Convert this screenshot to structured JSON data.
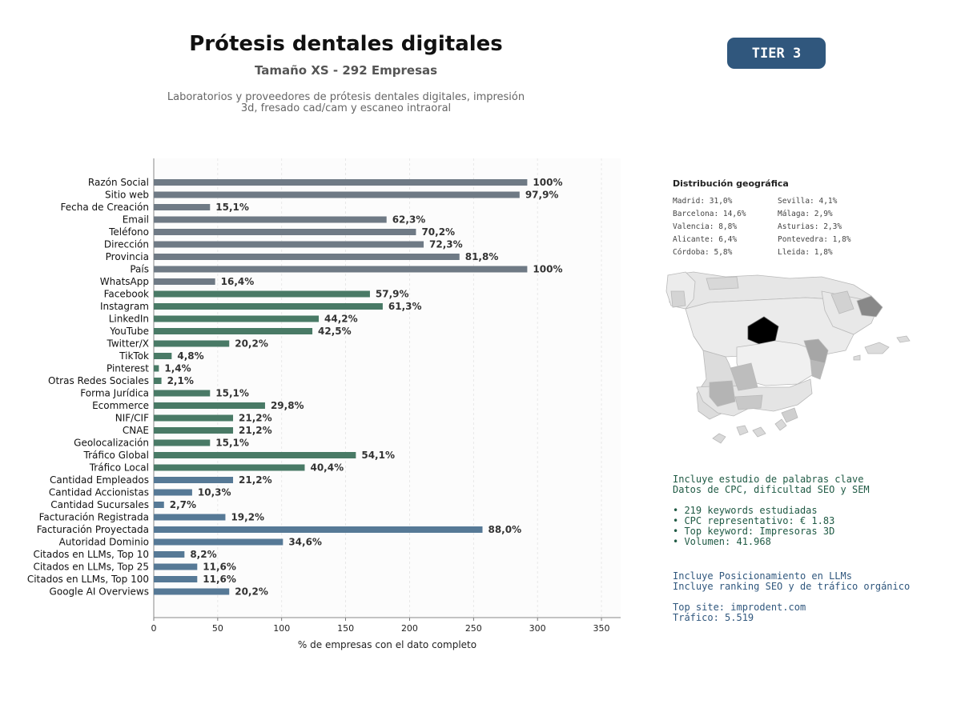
{
  "header": {
    "title": "Prótesis dentales digitales",
    "subtitle": "Tamaño XS - 292 Empresas",
    "description_line1": "Laboratorios y proveedores de prótesis dentales digitales, impresión",
    "description_line2": "3d, fresado cad/cam y escaneo intraoral",
    "tier": "TIER 3"
  },
  "chart_data": {
    "type": "bar",
    "orientation": "horizontal",
    "xlabel": "% de empresas con el dato completo",
    "xlim": [
      0,
      365
    ],
    "xticks": [
      0,
      50,
      100,
      150,
      200,
      250,
      300,
      350
    ],
    "colors": {
      "gray": "#6f7a85",
      "green": "#497a66",
      "blue": "#567996"
    },
    "categories": [
      "Razón Social",
      "Sitio web",
      "Fecha de Creación",
      "Email",
      "Teléfono",
      "Dirección",
      "Provincia",
      "País",
      "WhatsApp",
      "Facebook",
      "Instagram",
      "LinkedIn",
      "YouTube",
      "Twitter/X",
      "TikTok",
      "Pinterest",
      "Otras Redes Sociales",
      "Forma Jurídica",
      "Ecommerce",
      "NIF/CIF",
      "CNAE",
      "Geolocalización",
      "Tráfico Global",
      "Tráfico Local",
      "Cantidad Empleados",
      "Cantidad Accionistas",
      "Cantidad Sucursales",
      "Facturación Registrada",
      "Facturación Proyectada",
      "Autoridad Dominio",
      "Citados en LLMs, Top 10",
      "Citados en LLMs, Top 25",
      "Citados en LLMs, Top 100",
      "Google AI Overviews"
    ],
    "values": [
      292,
      286,
      44,
      182,
      205,
      211,
      239,
      292,
      48,
      169,
      179,
      129,
      124,
      59,
      14,
      4,
      6,
      44,
      87,
      62,
      62,
      44,
      158,
      118,
      62,
      30,
      8,
      56,
      257,
      101,
      24,
      34,
      34,
      59
    ],
    "labels": [
      "100%",
      "97,9%",
      "15,1%",
      "62,3%",
      "70,2%",
      "72,3%",
      "81,8%",
      "100%",
      "16,4%",
      "57,9%",
      "61,3%",
      "44,2%",
      "42,5%",
      "20,2%",
      "4,8%",
      "1,4%",
      "2,1%",
      "15,1%",
      "29,8%",
      "21,2%",
      "21,2%",
      "15,1%",
      "54,1%",
      "40,4%",
      "21,2%",
      "10,3%",
      "2,7%",
      "19,2%",
      "88,0%",
      "34,6%",
      "8,2%",
      "11,6%",
      "11,6%",
      "20,2%"
    ],
    "groups": [
      "gray",
      "gray",
      "gray",
      "gray",
      "gray",
      "gray",
      "gray",
      "gray",
      "gray",
      "green",
      "green",
      "green",
      "green",
      "green",
      "green",
      "green",
      "green",
      "green",
      "green",
      "green",
      "green",
      "green",
      "green",
      "green",
      "blue",
      "blue",
      "blue",
      "blue",
      "blue",
      "blue",
      "blue",
      "blue",
      "blue",
      "blue"
    ]
  },
  "geo": {
    "title": "Distribución geográfica",
    "items": [
      "Madrid: 31,0%",
      "Sevilla: 4,1%",
      "Barcelona: 14,6%",
      "Málaga: 2,9%",
      "Valencia: 8,8%",
      "Asturias: 2,3%",
      "Alicante: 6,4%",
      "Pontevedra: 1,8%",
      "Córdoba: 5,8%",
      "Lleida: 1,8%"
    ]
  },
  "keywords": {
    "line1": "Incluye estudio de palabras clave",
    "line2": "Datos de CPC, dificultad SEO y SEM",
    "bullet1": "• 219 keywords estudiadas",
    "bullet2": "• CPC representativo: € 1.83",
    "bullet3": "• Top keyword: Impresoras 3D",
    "bullet4": "• Volumen: 41.968"
  },
  "llm": {
    "line1": "Incluye Posicionamiento en LLMs",
    "line2": "Incluye ranking SEO y de tráfico orgánico",
    "top_site": "Top site: improdent.com",
    "traffic": "Tráfico: 5.519"
  }
}
